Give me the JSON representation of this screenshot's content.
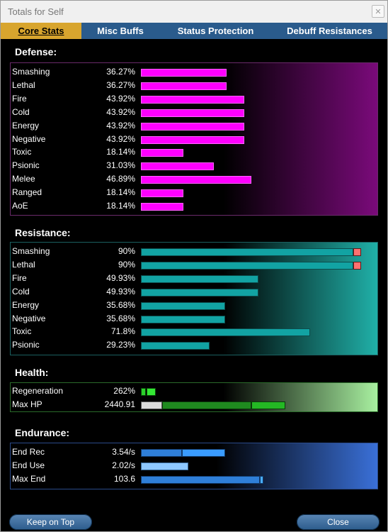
{
  "window": {
    "title": "Totals for Self",
    "close_glyph": "✕"
  },
  "tabs": [
    {
      "label": "Core Stats",
      "active": true
    },
    {
      "label": "Misc Buffs",
      "active": false
    },
    {
      "label": "Status Protection",
      "active": false
    },
    {
      "label": "Debuff Resistances",
      "active": false
    }
  ],
  "defense": {
    "title": "Defense:",
    "color": "#ff00ff",
    "rows": [
      {
        "label": "Smashing",
        "value": "36.27%",
        "pct": 36.27
      },
      {
        "label": "Lethal",
        "value": "36.27%",
        "pct": 36.27
      },
      {
        "label": "Fire",
        "value": "43.92%",
        "pct": 43.92
      },
      {
        "label": "Cold",
        "value": "43.92%",
        "pct": 43.92
      },
      {
        "label": "Energy",
        "value": "43.92%",
        "pct": 43.92
      },
      {
        "label": "Negative",
        "value": "43.92%",
        "pct": 43.92
      },
      {
        "label": "Toxic",
        "value": "18.14%",
        "pct": 18.14
      },
      {
        "label": "Psionic",
        "value": "31.03%",
        "pct": 31.03
      },
      {
        "label": "Melee",
        "value": "46.89%",
        "pct": 46.89
      },
      {
        "label": "Ranged",
        "value": "18.14%",
        "pct": 18.14
      },
      {
        "label": "AoE",
        "value": "18.14%",
        "pct": 18.14
      }
    ]
  },
  "resistance": {
    "title": "Resistance:",
    "color": "#12a3a3",
    "over_color": "#ff7070",
    "rows": [
      {
        "label": "Smashing",
        "value": "90%",
        "pct": 90,
        "capped": true
      },
      {
        "label": "Lethal",
        "value": "90%",
        "pct": 90,
        "capped": true
      },
      {
        "label": "Fire",
        "value": "49.93%",
        "pct": 49.93
      },
      {
        "label": "Cold",
        "value": "49.93%",
        "pct": 49.93
      },
      {
        "label": "Energy",
        "value": "35.68%",
        "pct": 35.68
      },
      {
        "label": "Negative",
        "value": "35.68%",
        "pct": 35.68
      },
      {
        "label": "Toxic",
        "value": "71.8%",
        "pct": 71.8
      },
      {
        "label": "Psionic",
        "value": "29.23%",
        "pct": 29.23
      }
    ]
  },
  "health": {
    "title": "Health:",
    "rows": [
      {
        "label": "Regeneration",
        "value": "262%"
      },
      {
        "label": "Max HP",
        "value": "2440.91"
      }
    ]
  },
  "endurance": {
    "title": "Endurance:",
    "rows": [
      {
        "label": "End Rec",
        "value": "3.54/s"
      },
      {
        "label": "End Use",
        "value": "2.02/s"
      },
      {
        "label": "Max End",
        "value": "103.6"
      }
    ]
  },
  "buttons": {
    "keep_on_top": "Keep on Top",
    "close": "Close"
  }
}
